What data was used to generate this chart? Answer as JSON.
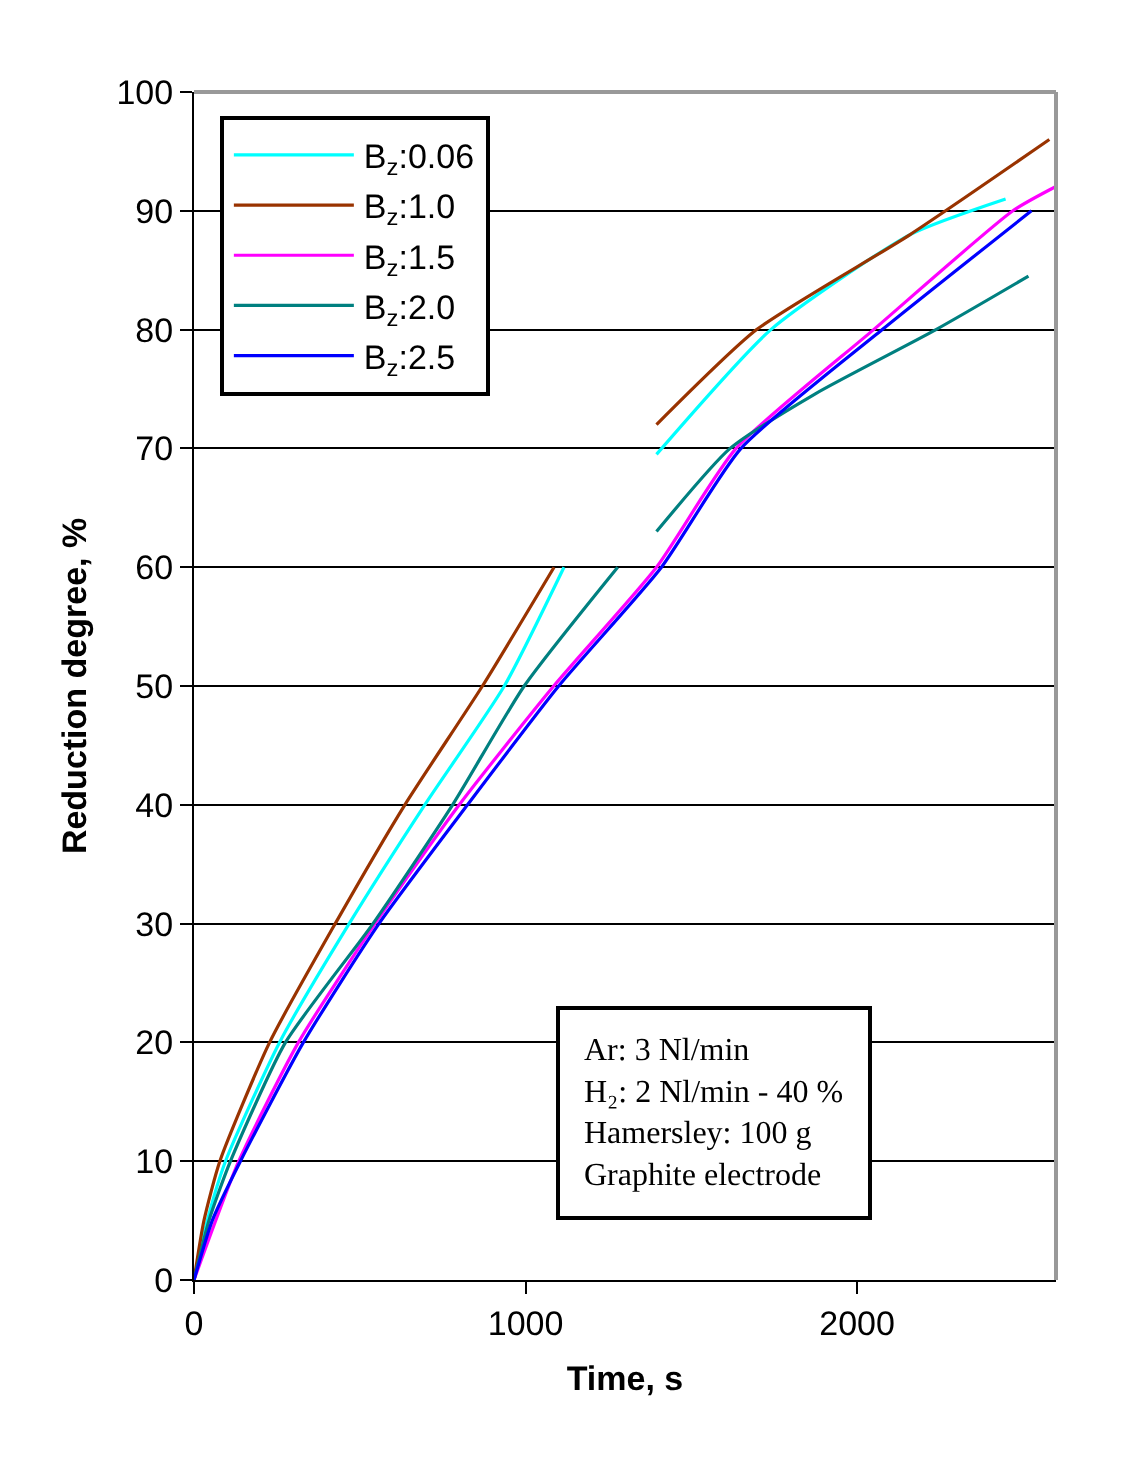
{
  "chart_data": {
    "type": "line",
    "xlabel": "Time, s",
    "ylabel": "Reduction degree, %",
    "xlim": [
      0,
      2600
    ],
    "xticks": [
      0,
      1000,
      2000
    ],
    "ylim": [
      0,
      100
    ],
    "yticks": [
      0,
      10,
      20,
      30,
      40,
      50,
      60,
      70,
      80,
      90,
      100
    ],
    "grid": "y",
    "legend": "top left",
    "marker": "none",
    "line_style": "solid",
    "series": [
      {
        "name": "B$_{z}$:0.06",
        "color": "#00ffff",
        "x": [
          0,
          40,
          95,
          258,
          468,
          696,
          936,
          1116,
          1250,
          1395,
          1740,
          2160,
          2448
        ],
        "values": [
          0,
          5,
          10,
          20,
          30,
          40,
          50,
          60,
          null,
          69.5,
          80,
          88,
          91
        ]
      },
      {
        "name": "B$_{z}$:1.0",
        "color": "#993300",
        "x": [
          0,
          30,
          78,
          228,
          426,
          636,
          870,
          1086,
          1250,
          1395,
          1697,
          2160,
          2580
        ],
        "values": [
          0,
          5,
          10,
          20,
          30,
          40,
          50,
          60,
          null,
          72,
          80,
          88,
          96
        ]
      },
      {
        "name": "B$_{z}$:1.5",
        "color": "#ff00ff",
        "x": [
          0,
          135,
          315,
          546,
          800,
          1085,
          1395,
          1635,
          2050,
          2470,
          2597
        ],
        "values": [
          0,
          10,
          20,
          30,
          40,
          50,
          60,
          70,
          80,
          90,
          92
        ]
      },
      {
        "name": "B$_{z}$:2.0",
        "color": "#008080",
        "x": [
          0,
          45,
          110,
          276,
          540,
          780,
          996,
          1278,
          1340,
          1395,
          1617,
          1874,
          2238,
          2517
        ],
        "values": [
          0,
          5,
          10,
          20,
          30,
          40,
          50,
          60,
          null,
          63,
          70,
          74.6,
          80,
          84.5
        ]
      },
      {
        "name": "B$_{z}$:2.5",
        "color": "#0000ff",
        "x": [
          0,
          55,
          140,
          330,
          558,
          825,
          1100,
          1410,
          1650,
          2076,
          2526
        ],
        "values": [
          0,
          5,
          10,
          20,
          30,
          40,
          50,
          60,
          70,
          80,
          90
        ]
      }
    ],
    "annotations": [
      "Ar: 3 Nl/min",
      "H₂: 2 Nl/min - 40 %",
      "Hamersley: 100 g",
      "Graphite electrode"
    ]
  }
}
